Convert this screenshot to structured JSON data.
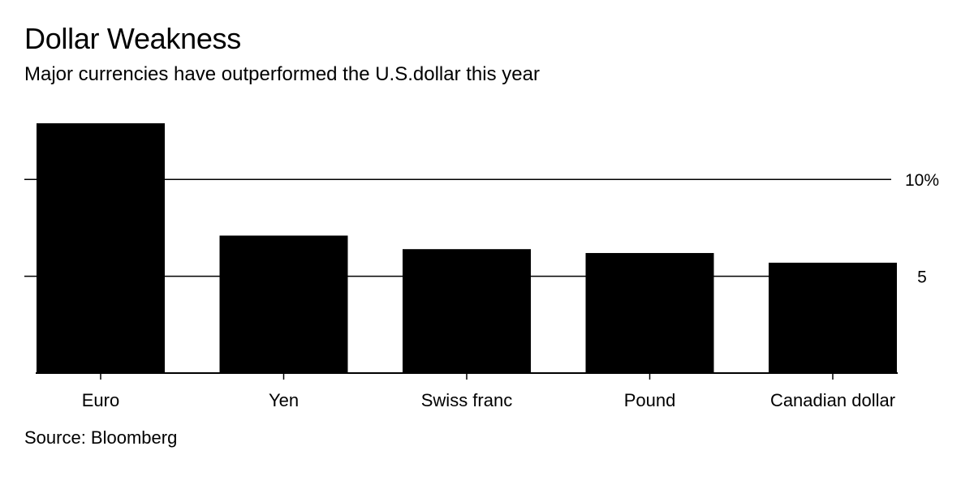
{
  "chart_data": {
    "type": "bar",
    "title": "Dollar Weakness",
    "subtitle": "Major currencies have outperformed the U.S.dollar this year",
    "categories": [
      "Euro",
      "Yen",
      "Swiss franc",
      "Pound",
      "Canadian dollar"
    ],
    "values": [
      12.9,
      7.1,
      6.4,
      6.2,
      5.7
    ],
    "ylim": [
      0,
      12.9
    ],
    "yticks": [
      5,
      10
    ],
    "ytick_labels": [
      "5",
      "10%"
    ],
    "grid": true,
    "axis_side": "right",
    "bar_color": "#000000",
    "source": "Source: Bloomberg"
  }
}
